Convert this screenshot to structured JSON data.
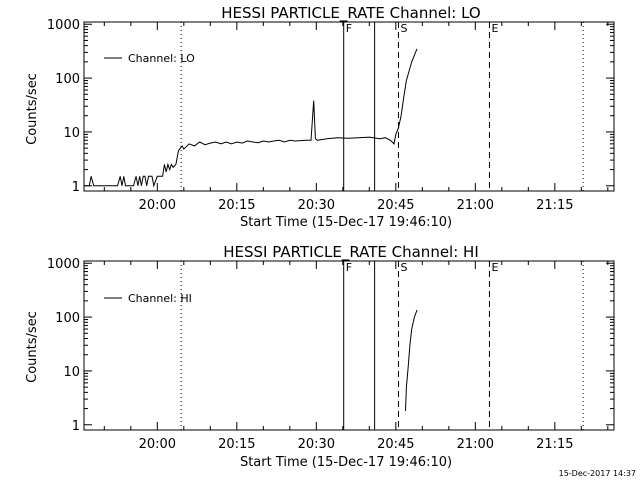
{
  "chart_data": [
    {
      "type": "line",
      "title": "HESSI PARTICLE_RATE Channel: LO",
      "xlabel": "Start Time (15-Dec-17 19:46:10)",
      "ylabel": "Counts/sec",
      "yscale": "log",
      "ylim": [
        0.8,
        1100
      ],
      "xlim": [
        "19:46:10",
        "21:26:10"
      ],
      "x_ticks": [
        "20:00",
        "20:15",
        "20:30",
        "20:45",
        "21:00",
        "21:15"
      ],
      "y_ticks": [
        "1",
        "10",
        "100",
        "1000"
      ],
      "legend": {
        "label": "Channel: LO",
        "placement": "top-left"
      },
      "markers": [
        {
          "time": "20:04:30",
          "style": "dotted",
          "label": ""
        },
        {
          "time": "20:35:10",
          "style": "solid",
          "label": "F"
        },
        {
          "time": "20:41:00",
          "style": "solid",
          "label": ""
        },
        {
          "time": "20:45:30",
          "style": "dashed",
          "label": "S"
        },
        {
          "time": "21:02:40",
          "style": "dashed",
          "label": "E"
        },
        {
          "time": "21:20:20",
          "style": "dotted",
          "label": ""
        }
      ],
      "series": [
        {
          "x": [
            "19:46:10",
            "19:47:10",
            "19:47:30",
            "19:48:00",
            "19:49:00",
            "19:49:30",
            "19:50:00",
            "19:51:00",
            "19:52:30",
            "19:53:00",
            "19:53:20",
            "19:53:40",
            "19:54:00",
            "19:55:30",
            "19:56:00",
            "19:56:20",
            "19:56:40",
            "19:57:00",
            "19:57:20",
            "19:57:40",
            "19:58:00",
            "19:58:20",
            "19:58:40",
            "19:59:00",
            "19:59:20",
            "20:00:00",
            "20:01:00",
            "20:01:20",
            "20:01:40",
            "20:02:00",
            "20:02:20",
            "20:02:40",
            "20:03:00",
            "20:03:30",
            "20:04:00",
            "20:04:40",
            "20:05:00",
            "20:06:00",
            "20:07:00",
            "20:08:00",
            "20:09:00",
            "20:10:00",
            "20:11:00",
            "20:12:00",
            "20:13:00",
            "20:14:00",
            "20:15:00",
            "20:16:00",
            "20:17:00",
            "20:18:00",
            "20:19:00",
            "20:20:00",
            "20:21:00",
            "20:22:00",
            "20:23:00",
            "20:24:00",
            "20:25:00",
            "20:26:00",
            "20:27:00",
            "20:28:00",
            "20:29:00",
            "20:29:30",
            "20:29:50",
            "20:30:10",
            "20:31:00",
            "20:32:00",
            "20:34:00",
            "20:36:00",
            "20:38:00",
            "20:40:00",
            "20:42:00",
            "20:43:00",
            "20:44:00",
            "20:44:40",
            "20:45:00",
            "20:45:30",
            "20:46:00",
            "20:46:30",
            "20:47:00",
            "20:48:00",
            "20:49:00"
          ],
          "y": [
            1,
            1,
            1.5,
            1,
            1,
            1,
            1,
            1,
            1,
            1.5,
            1,
            1.5,
            1,
            1,
            1.5,
            1,
            1.5,
            1,
            1.5,
            1.5,
            1,
            1.5,
            1.5,
            1.5,
            1,
            1.5,
            1.5,
            2.5,
            1.8,
            2.5,
            2.0,
            2.5,
            2.2,
            2.5,
            4.5,
            5.5,
            4.8,
            6,
            5.5,
            6.5,
            5.8,
            6.2,
            6.5,
            6,
            6.5,
            6,
            6.5,
            6.2,
            6.8,
            6.5,
            6.3,
            6.8,
            6.5,
            6.8,
            7,
            6.5,
            7,
            6.8,
            6.9,
            7,
            7,
            38,
            7.5,
            7,
            7.2,
            7.5,
            7.8,
            7.6,
            7.8,
            8,
            7.5,
            7.8,
            7,
            6,
            9,
            12,
            20,
            45,
            90,
            200,
            350
          ]
        }
      ]
    },
    {
      "type": "line",
      "title": "HESSI PARTICLE_RATE Channel: HI",
      "xlabel": "Start Time (15-Dec-17 19:46:10)",
      "ylabel": "Counts/sec",
      "yscale": "log",
      "ylim": [
        0.8,
        1100
      ],
      "xlim": [
        "19:46:10",
        "21:26:10"
      ],
      "x_ticks": [
        "20:00",
        "20:15",
        "20:30",
        "20:45",
        "21:00",
        "21:15"
      ],
      "y_ticks": [
        "1",
        "10",
        "100",
        "1000"
      ],
      "legend": {
        "label": "Channel: HI",
        "placement": "top-left"
      },
      "markers": [
        {
          "time": "20:04:30",
          "style": "dotted",
          "label": ""
        },
        {
          "time": "20:35:10",
          "style": "solid",
          "label": "F"
        },
        {
          "time": "20:41:00",
          "style": "solid",
          "label": ""
        },
        {
          "time": "20:45:30",
          "style": "dashed",
          "label": "S"
        },
        {
          "time": "21:02:40",
          "style": "dashed",
          "label": "E"
        },
        {
          "time": "21:20:20",
          "style": "dotted",
          "label": ""
        }
      ],
      "series": [
        {
          "x": [
            "20:46:50",
            "20:47:00",
            "20:47:20",
            "20:47:40",
            "20:48:00",
            "20:48:30",
            "20:49:00"
          ],
          "y": [
            1.8,
            5,
            12,
            30,
            60,
            100,
            135
          ]
        }
      ]
    }
  ],
  "timestamp": "15-Dec-2017 14:37"
}
